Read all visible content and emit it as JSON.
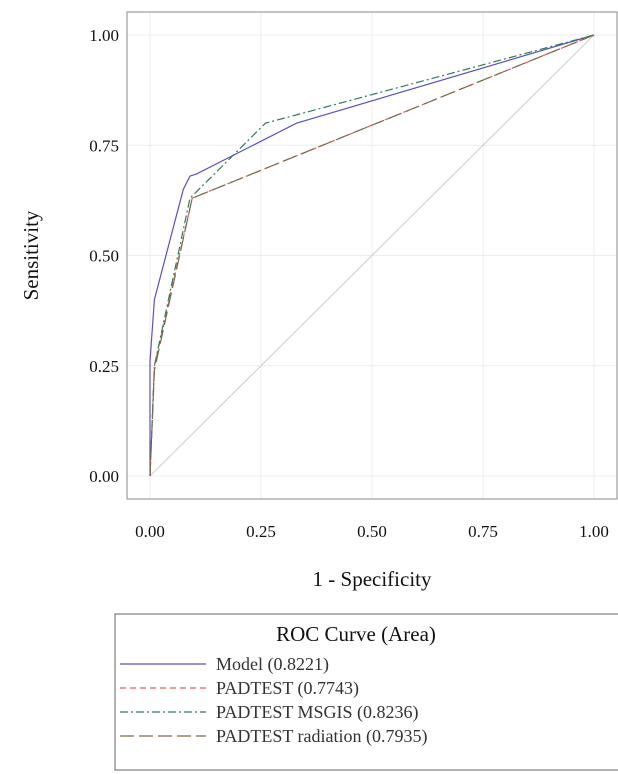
{
  "chart_data": {
    "type": "line",
    "xlabel": "1 - Specificity",
    "ylabel": "Sensitivity",
    "xlim": [
      0,
      1
    ],
    "ylim": [
      0,
      1
    ],
    "x_ticks": [
      "0.00",
      "0.25",
      "0.50",
      "0.75",
      "1.00"
    ],
    "y_ticks": [
      "0.00",
      "0.25",
      "0.50",
      "0.75",
      "1.00"
    ],
    "grid": true,
    "reference_line": {
      "x": [
        0,
        1
      ],
      "y": [
        0,
        1
      ],
      "color": "#d3d3d3"
    },
    "legend": {
      "title": "ROC Curve (Area)",
      "position": "bottom"
    },
    "series": [
      {
        "name": "Model",
        "area_label": "(0.8221)",
        "color": "#5b4fc4",
        "dash": "solid",
        "x": [
          0,
          0,
          0.01,
          0.075,
          0.09,
          0.105,
          0.33,
          1
        ],
        "y": [
          0,
          0.26,
          0.4,
          0.65,
          0.68,
          0.685,
          0.8,
          1
        ]
      },
      {
        "name": "PADTEST",
        "area_label": "(0.7743)",
        "color": "#d96060",
        "dash": "dashed",
        "x": [
          0,
          0.01,
          0.095,
          1
        ],
        "y": [
          0,
          0.25,
          0.63,
          1
        ]
      },
      {
        "name": "PADTEST MSGIS",
        "area_label": "(0.8236)",
        "color": "#2e7d5b",
        "dash": "dashdot",
        "x": [
          0,
          0.01,
          0.09,
          0.26,
          1
        ],
        "y": [
          0,
          0.25,
          0.63,
          0.8,
          1
        ]
      },
      {
        "name": "PADTEST radiation",
        "area_label": "(0.7935)",
        "color": "#7a6b4a",
        "dash": "longdash",
        "x": [
          0,
          0.01,
          0.095,
          1
        ],
        "y": [
          0,
          0.24,
          0.63,
          1
        ]
      }
    ]
  }
}
